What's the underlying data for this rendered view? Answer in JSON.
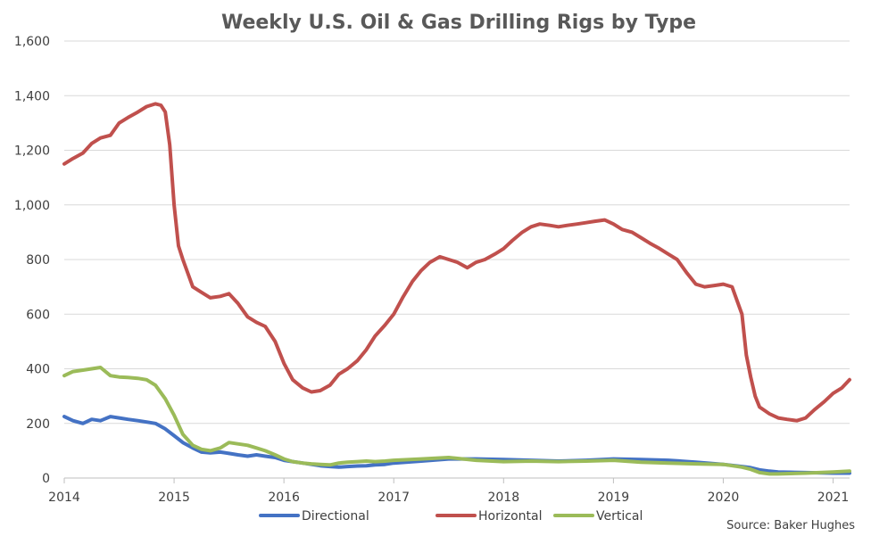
{
  "chart_data": {
    "type": "line",
    "title": "Weekly U.S. Oil & Gas Drilling Rigs by Type",
    "xlabel": "",
    "ylabel": "",
    "xlim": [
      2014.0,
      2021.15
    ],
    "ylim": [
      0,
      1600
    ],
    "grid": true,
    "legend_position": "bottom",
    "x_ticks": [
      "2014",
      "2015",
      "2016",
      "2017",
      "2018",
      "2019",
      "2020",
      "2021"
    ],
    "y_ticks": [
      "0",
      "200",
      "400",
      "600",
      "800",
      "1,000",
      "1,200",
      "1,400",
      "1,600"
    ],
    "annotation": "Source: Baker Hughes",
    "series": [
      {
        "name": "Directional",
        "color": "#4472c4",
        "x": [
          2014.0,
          2014.08,
          2014.17,
          2014.25,
          2014.33,
          2014.42,
          2014.5,
          2014.58,
          2014.67,
          2014.75,
          2014.83,
          2014.92,
          2015.0,
          2015.08,
          2015.17,
          2015.25,
          2015.33,
          2015.42,
          2015.5,
          2015.58,
          2015.67,
          2015.75,
          2015.83,
          2015.92,
          2016.0,
          2016.08,
          2016.17,
          2016.25,
          2016.33,
          2016.42,
          2016.5,
          2016.58,
          2016.67,
          2016.75,
          2016.83,
          2016.92,
          2017.0,
          2017.25,
          2017.5,
          2017.75,
          2018.0,
          2018.25,
          2018.5,
          2018.75,
          2019.0,
          2019.25,
          2019.5,
          2019.75,
          2020.0,
          2020.17,
          2020.25,
          2020.33,
          2020.42,
          2020.5,
          2020.75,
          2021.0,
          2021.15
        ],
        "values": [
          225,
          210,
          200,
          215,
          210,
          225,
          220,
          215,
          210,
          205,
          200,
          180,
          155,
          130,
          110,
          95,
          92,
          95,
          90,
          85,
          80,
          85,
          80,
          75,
          65,
          60,
          55,
          50,
          45,
          42,
          40,
          42,
          44,
          45,
          48,
          50,
          55,
          62,
          70,
          70,
          68,
          65,
          62,
          65,
          70,
          68,
          65,
          58,
          50,
          42,
          38,
          30,
          25,
          22,
          20,
          18,
          18
        ]
      },
      {
        "name": "Horizontal",
        "color": "#c0504d",
        "x": [
          2014.0,
          2014.08,
          2014.17,
          2014.25,
          2014.33,
          2014.42,
          2014.5,
          2014.58,
          2014.67,
          2014.75,
          2014.83,
          2014.88,
          2014.92,
          2014.96,
          2015.0,
          2015.04,
          2015.08,
          2015.17,
          2015.25,
          2015.33,
          2015.42,
          2015.5,
          2015.58,
          2015.67,
          2015.75,
          2015.83,
          2015.92,
          2016.0,
          2016.08,
          2016.17,
          2016.25,
          2016.33,
          2016.42,
          2016.5,
          2016.58,
          2016.67,
          2016.75,
          2016.83,
          2016.92,
          2017.0,
          2017.08,
          2017.17,
          2017.25,
          2017.33,
          2017.42,
          2017.5,
          2017.58,
          2017.67,
          2017.75,
          2017.83,
          2017.92,
          2018.0,
          2018.08,
          2018.17,
          2018.25,
          2018.33,
          2018.42,
          2018.5,
          2018.58,
          2018.67,
          2018.75,
          2018.83,
          2018.92,
          2019.0,
          2019.08,
          2019.17,
          2019.25,
          2019.33,
          2019.42,
          2019.5,
          2019.58,
          2019.67,
          2019.75,
          2019.83,
          2019.92,
          2020.0,
          2020.08,
          2020.17,
          2020.21,
          2020.25,
          2020.29,
          2020.33,
          2020.42,
          2020.5,
          2020.58,
          2020.67,
          2020.75,
          2020.83,
          2020.92,
          2021.0,
          2021.08,
          2021.15
        ],
        "values": [
          1150,
          1170,
          1190,
          1225,
          1245,
          1255,
          1300,
          1320,
          1340,
          1360,
          1370,
          1365,
          1340,
          1220,
          1000,
          850,
          800,
          700,
          680,
          660,
          665,
          675,
          640,
          590,
          570,
          555,
          500,
          420,
          360,
          330,
          315,
          320,
          340,
          380,
          400,
          430,
          470,
          520,
          560,
          600,
          660,
          720,
          760,
          790,
          810,
          800,
          790,
          770,
          790,
          800,
          820,
          840,
          870,
          900,
          920,
          930,
          925,
          920,
          925,
          930,
          935,
          940,
          945,
          930,
          910,
          900,
          880,
          860,
          840,
          820,
          800,
          750,
          710,
          700,
          705,
          710,
          700,
          600,
          450,
          370,
          300,
          260,
          235,
          220,
          215,
          210,
          220,
          250,
          280,
          310,
          330,
          360
        ]
      },
      {
        "name": "Vertical",
        "color": "#9bbb59",
        "x": [
          2014.0,
          2014.08,
          2014.17,
          2014.25,
          2014.33,
          2014.42,
          2014.5,
          2014.58,
          2014.67,
          2014.75,
          2014.83,
          2014.92,
          2015.0,
          2015.08,
          2015.17,
          2015.25,
          2015.33,
          2015.42,
          2015.5,
          2015.58,
          2015.67,
          2015.75,
          2015.83,
          2015.92,
          2016.0,
          2016.08,
          2016.17,
          2016.25,
          2016.33,
          2016.42,
          2016.5,
          2016.58,
          2016.67,
          2016.75,
          2016.83,
          2016.92,
          2017.0,
          2017.25,
          2017.5,
          2017.75,
          2018.0,
          2018.25,
          2018.5,
          2018.75,
          2019.0,
          2019.25,
          2019.5,
          2019.75,
          2020.0,
          2020.17,
          2020.25,
          2020.33,
          2020.42,
          2020.5,
          2020.75,
          2021.0,
          2021.15
        ],
        "values": [
          375,
          390,
          395,
          400,
          405,
          375,
          370,
          368,
          365,
          360,
          340,
          290,
          230,
          160,
          120,
          105,
          100,
          110,
          130,
          125,
          120,
          110,
          100,
          85,
          70,
          60,
          55,
          52,
          50,
          48,
          55,
          58,
          60,
          62,
          60,
          62,
          65,
          70,
          75,
          65,
          60,
          62,
          60,
          62,
          65,
          58,
          55,
          52,
          50,
          40,
          32,
          20,
          15,
          15,
          18,
          22,
          25
        ]
      }
    ]
  }
}
